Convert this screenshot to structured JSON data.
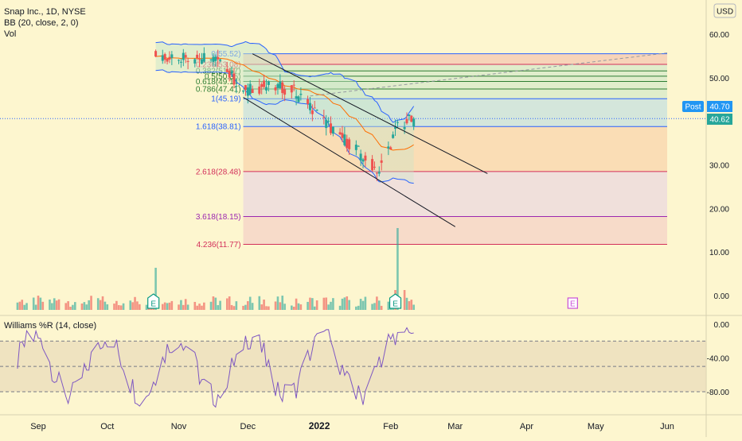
{
  "legend": {
    "symbol": "Snap Inc., 1D, NYSE",
    "bb": "BB (20, close, 2, 0)",
    "vol": "Vol",
    "wr": "Williams %R (14, close)"
  },
  "currency_badge": "USD",
  "post_badge": {
    "label": "Post",
    "value": "40.70",
    "color": "#2196f3"
  },
  "last_price_badge": {
    "value": "40.62",
    "color": "#26a69a"
  },
  "colors": {
    "background": "#fdf6cf",
    "up": "#26a69a",
    "down": "#ef5350",
    "bb_band": "#2962ff",
    "bb_basis": "#ff6d00",
    "wr_line": "#7e57c2",
    "channel": "#131722",
    "fib_blue": "#2962ff",
    "fib_red": "#d32f5a",
    "fib_purple": "#9c27b0"
  },
  "earnings_markers": [
    {
      "label": "E",
      "date": "2021-10-21",
      "past": true
    },
    {
      "label": "E",
      "date": "2022-02-03",
      "past": true
    },
    {
      "label": "E",
      "date": "2022-04-21",
      "past": false
    }
  ],
  "chart_data": [
    {
      "type": "candlestick",
      "title": "Snap Inc., 1D, NYSE",
      "y_axis": {
        "min": -3,
        "max": 68,
        "ticks": [
          "60.00",
          "50.00",
          "40.00",
          "30.00",
          "20.00",
          "10.00",
          "0.00"
        ],
        "position": "right"
      },
      "x_axis": {
        "ticks": [
          "Sep",
          "Oct",
          "Nov",
          "Dec",
          "2022",
          "Feb",
          "Mar",
          "Apr",
          "May",
          "Jun"
        ]
      },
      "grid": false,
      "series_candles": {
        "name": "SNAP",
        "date_range": [
          "2021-10-22",
          "2022-02-11"
        ],
        "ohlc_samples": [
          {
            "date": "2021-10-22",
            "open": 57.0,
            "high": 60.5,
            "low": 54.0,
            "close": 55.2
          },
          {
            "date": "2021-11-03",
            "open": 53.5,
            "high": 56.0,
            "low": 52.0,
            "close": 55.0
          },
          {
            "date": "2021-11-17",
            "open": 55.8,
            "high": 57.0,
            "low": 53.5,
            "close": 54.0
          },
          {
            "date": "2021-11-30",
            "open": 50.0,
            "high": 52.0,
            "low": 46.0,
            "close": 47.0
          },
          {
            "date": "2021-12-08",
            "open": 49.0,
            "high": 50.5,
            "low": 47.0,
            "close": 48.0
          },
          {
            "date": "2021-12-20",
            "open": 47.0,
            "high": 49.0,
            "low": 45.5,
            "close": 47.5
          },
          {
            "date": "2022-01-05",
            "open": 42.0,
            "high": 43.5,
            "low": 38.5,
            "close": 39.0
          },
          {
            "date": "2022-01-18",
            "open": 35.0,
            "high": 36.0,
            "low": 31.5,
            "close": 33.0
          },
          {
            "date": "2022-01-27",
            "open": 29.0,
            "high": 30.5,
            "low": 27.5,
            "close": 28.5
          },
          {
            "date": "2022-02-04",
            "open": 36.0,
            "high": 39.5,
            "low": 34.5,
            "close": 38.9
          },
          {
            "date": "2022-02-11",
            "open": 38.8,
            "high": 41.0,
            "low": 38.0,
            "close": 40.62
          }
        ]
      },
      "bollinger": {
        "length": 20,
        "source": "close",
        "mult": 2,
        "offset": 0
      },
      "fib_levels": [
        {
          "label": "0(55.52)",
          "value": 55.52
        },
        {
          "label": "0.236(53.08)",
          "value": 53.08
        },
        {
          "label": "0.382(51.57)",
          "value": 51.57
        },
        {
          "label": "0.5(50.35)",
          "value": 50.35
        },
        {
          "label": "0.618(49.14)",
          "value": 49.14
        },
        {
          "label": "0.786(47.41)",
          "value": 47.41
        },
        {
          "label": "1(45.19)",
          "value": 45.19
        },
        {
          "label": "1.618(38.81)",
          "value": 38.81
        },
        {
          "label": "2.618(28.48)",
          "value": 28.48
        },
        {
          "label": "3.618(18.15)",
          "value": 18.15
        },
        {
          "label": "4.236(11.77)",
          "value": 11.77
        }
      ],
      "last_close": 40.62,
      "post_market": 40.7
    },
    {
      "type": "bar",
      "title": "Vol",
      "note": "volume histogram, spike on earnings days"
    },
    {
      "type": "line",
      "title": "Williams %R (14, close)",
      "y_axis": {
        "min": -100,
        "max": 0,
        "ticks": [
          "0.00",
          "-40.00",
          "-80.00"
        ]
      },
      "bands": {
        "upper": -20,
        "middle": -50,
        "lower": -80
      }
    }
  ]
}
